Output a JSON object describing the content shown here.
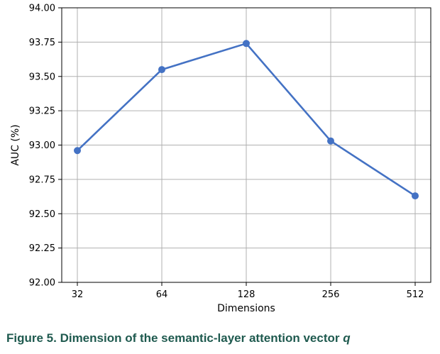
{
  "caption": {
    "text": "Figure 5. Dimension of the semantic-layer attention vector ",
    "variable": "q"
  },
  "chart_data": {
    "type": "line",
    "categories": [
      "32",
      "64",
      "128",
      "256",
      "512"
    ],
    "series": [
      {
        "values": [
          92.96,
          93.55,
          93.74,
          93.03,
          92.63
        ],
        "color": "#4472c4"
      }
    ],
    "xlabel": "Dimensions",
    "ylabel": "AUC (%)",
    "ylim": [
      92.0,
      94.0
    ],
    "yticks": [
      "92.00",
      "92.25",
      "92.50",
      "92.75",
      "93.00",
      "93.25",
      "93.50",
      "93.75",
      "94.00"
    ],
    "grid": true,
    "legend": "none"
  }
}
